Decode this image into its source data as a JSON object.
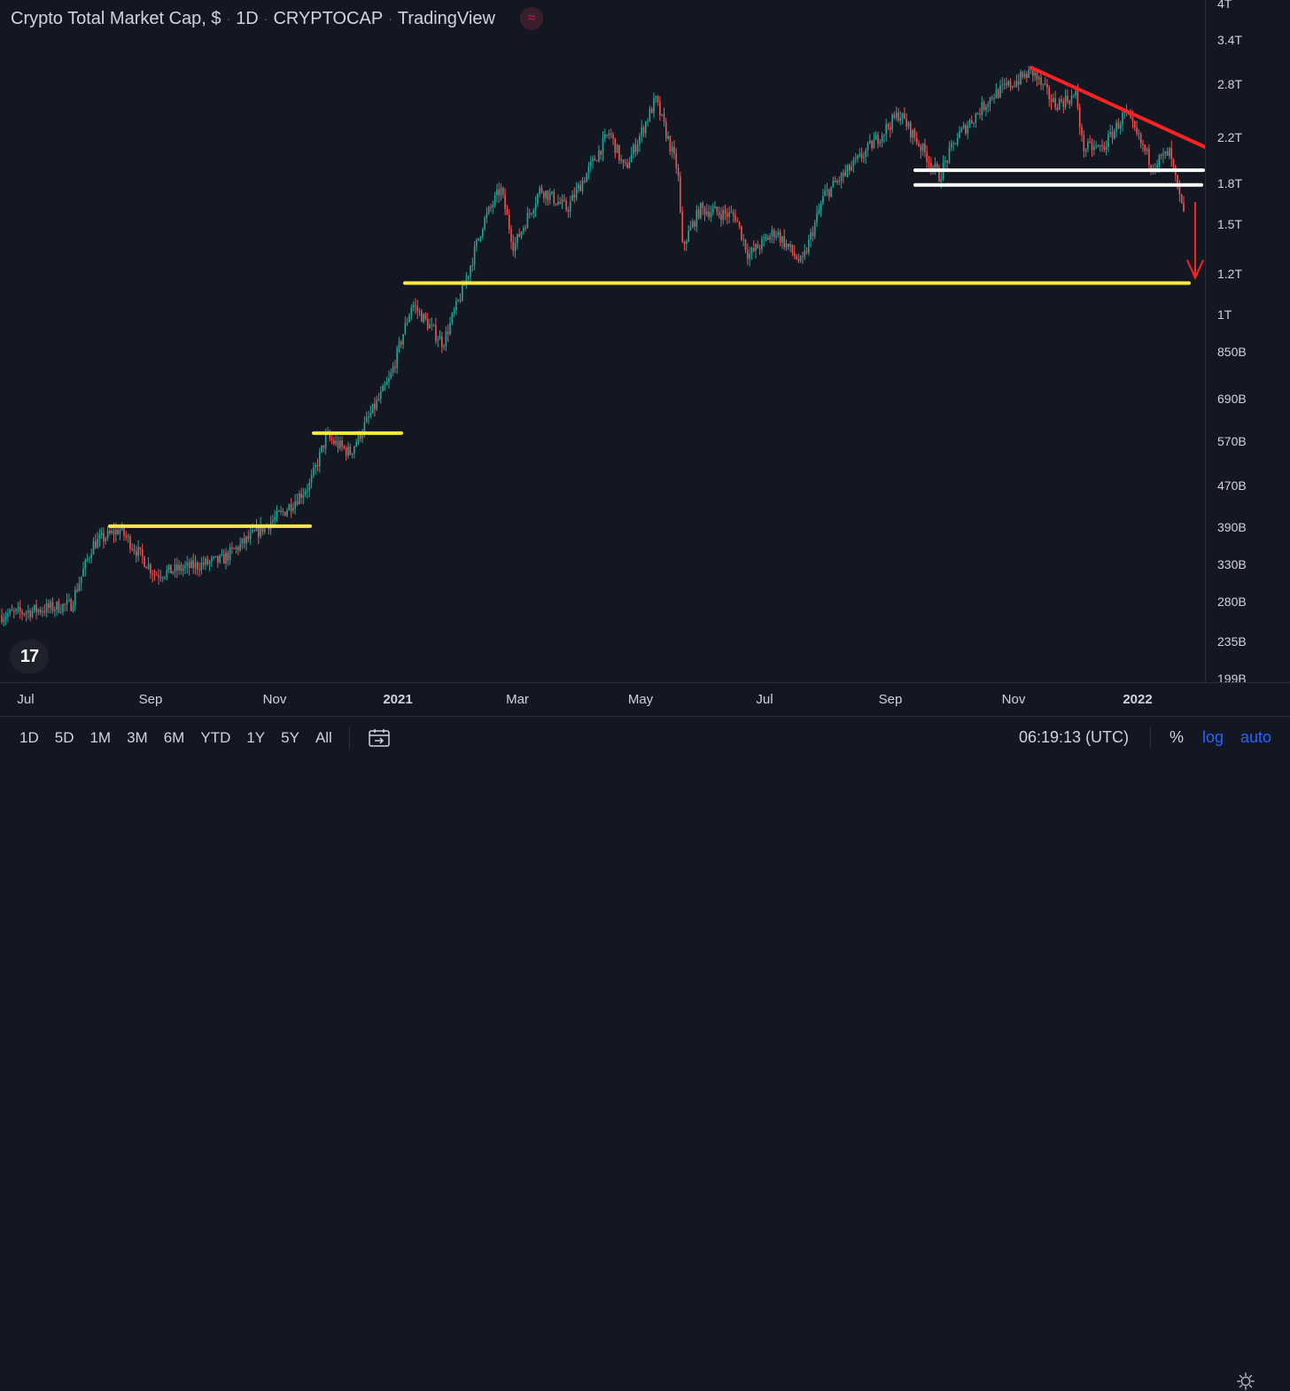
{
  "header": {
    "symbol_name": "Crypto Total Market Cap, $",
    "interval": "1D",
    "exchange": "CRYPTOCAP",
    "source": "TradingView",
    "badge_icon": "waves-icon"
  },
  "logo_text": "17",
  "colors": {
    "background": "#131722",
    "up": "#26a69a",
    "down": "#ef5350",
    "support": "#ffeb3b",
    "resistance": "#ff2222",
    "range": "#ffffff"
  },
  "price_axis": {
    "scale": "log",
    "ticks": [
      "4T",
      "3.4T",
      "2.8T",
      "2.2T",
      "1.8T",
      "1.5T",
      "1.2T",
      "1T",
      "850B",
      "690B",
      "570B",
      "470B",
      "390B",
      "330B",
      "280B",
      "235B",
      "199B"
    ]
  },
  "time_axis": {
    "ticks": [
      {
        "label": "Jul",
        "bold": false
      },
      {
        "label": "Sep",
        "bold": false
      },
      {
        "label": "Nov",
        "bold": false
      },
      {
        "label": "2021",
        "bold": true
      },
      {
        "label": "Mar",
        "bold": false
      },
      {
        "label": "May",
        "bold": false
      },
      {
        "label": "Jul",
        "bold": false
      },
      {
        "label": "Sep",
        "bold": false
      },
      {
        "label": "Nov",
        "bold": false
      },
      {
        "label": "2022",
        "bold": true
      }
    ]
  },
  "bottom_bar": {
    "ranges": [
      "1D",
      "5D",
      "1M",
      "3M",
      "6M",
      "YTD",
      "1Y",
      "5Y",
      "All"
    ],
    "clock": "06:19:13 (UTC)",
    "percent_label": "%",
    "log_label": "log",
    "auto_label": "auto",
    "active_color": "#2962ff"
  },
  "chart_data": {
    "type": "candlestick",
    "title": "Crypto Total Market Cap, $",
    "interval": "1D",
    "x_range": [
      "2020-06",
      "2022-01"
    ],
    "y_scale": "log",
    "ylim": [
      199000000000,
      4000000000000
    ],
    "series": [
      {
        "date": "2020-07",
        "value": 260000000000
      },
      {
        "date": "2020-08",
        "value": 370000000000
      },
      {
        "date": "2020-09",
        "value": 340000000000
      },
      {
        "date": "2020-10",
        "value": 360000000000
      },
      {
        "date": "2020-11",
        "value": 420000000000
      },
      {
        "date": "2020-12",
        "value": 560000000000
      },
      {
        "date": "2021-01",
        "value": 950000000000
      },
      {
        "date": "2021-02",
        "value": 1400000000000
      },
      {
        "date": "2021-03",
        "value": 1750000000000
      },
      {
        "date": "2021-04",
        "value": 2200000000000
      },
      {
        "date": "2021-05",
        "value": 2550000000000
      },
      {
        "date": "2021-06",
        "value": 1550000000000
      },
      {
        "date": "2021-07",
        "value": 1250000000000
      },
      {
        "date": "2021-08",
        "value": 1900000000000
      },
      {
        "date": "2021-09",
        "value": 2200000000000
      },
      {
        "date": "2021-10",
        "value": 2500000000000
      },
      {
        "date": "2021-11",
        "value": 3000000000000
      },
      {
        "date": "2021-12",
        "value": 2300000000000
      },
      {
        "date": "2022-01",
        "value": 1600000000000
      }
    ],
    "annotations": [
      {
        "type": "support",
        "value": 390000000000,
        "from": "2020-08",
        "to": "2020-11"
      },
      {
        "type": "support",
        "value": 590000000000,
        "from": "2020-12",
        "to": "2020-12"
      },
      {
        "type": "support",
        "value": 1150000000000,
        "from": "2021-01",
        "to": "2022-01"
      },
      {
        "type": "range",
        "value": 1900000000000,
        "from": "2021-09",
        "to": "2022-01"
      },
      {
        "type": "range",
        "value": 1780000000000,
        "from": "2021-09",
        "to": "2022-01"
      },
      {
        "type": "trendline",
        "from_value": 3000000000000,
        "to_value": 2100000000000,
        "from": "2021-11",
        "to": "2022-01"
      },
      {
        "type": "arrow-down",
        "from_value": 1650000000000,
        "to_value": 1150000000000,
        "at": "2022-01"
      }
    ]
  }
}
